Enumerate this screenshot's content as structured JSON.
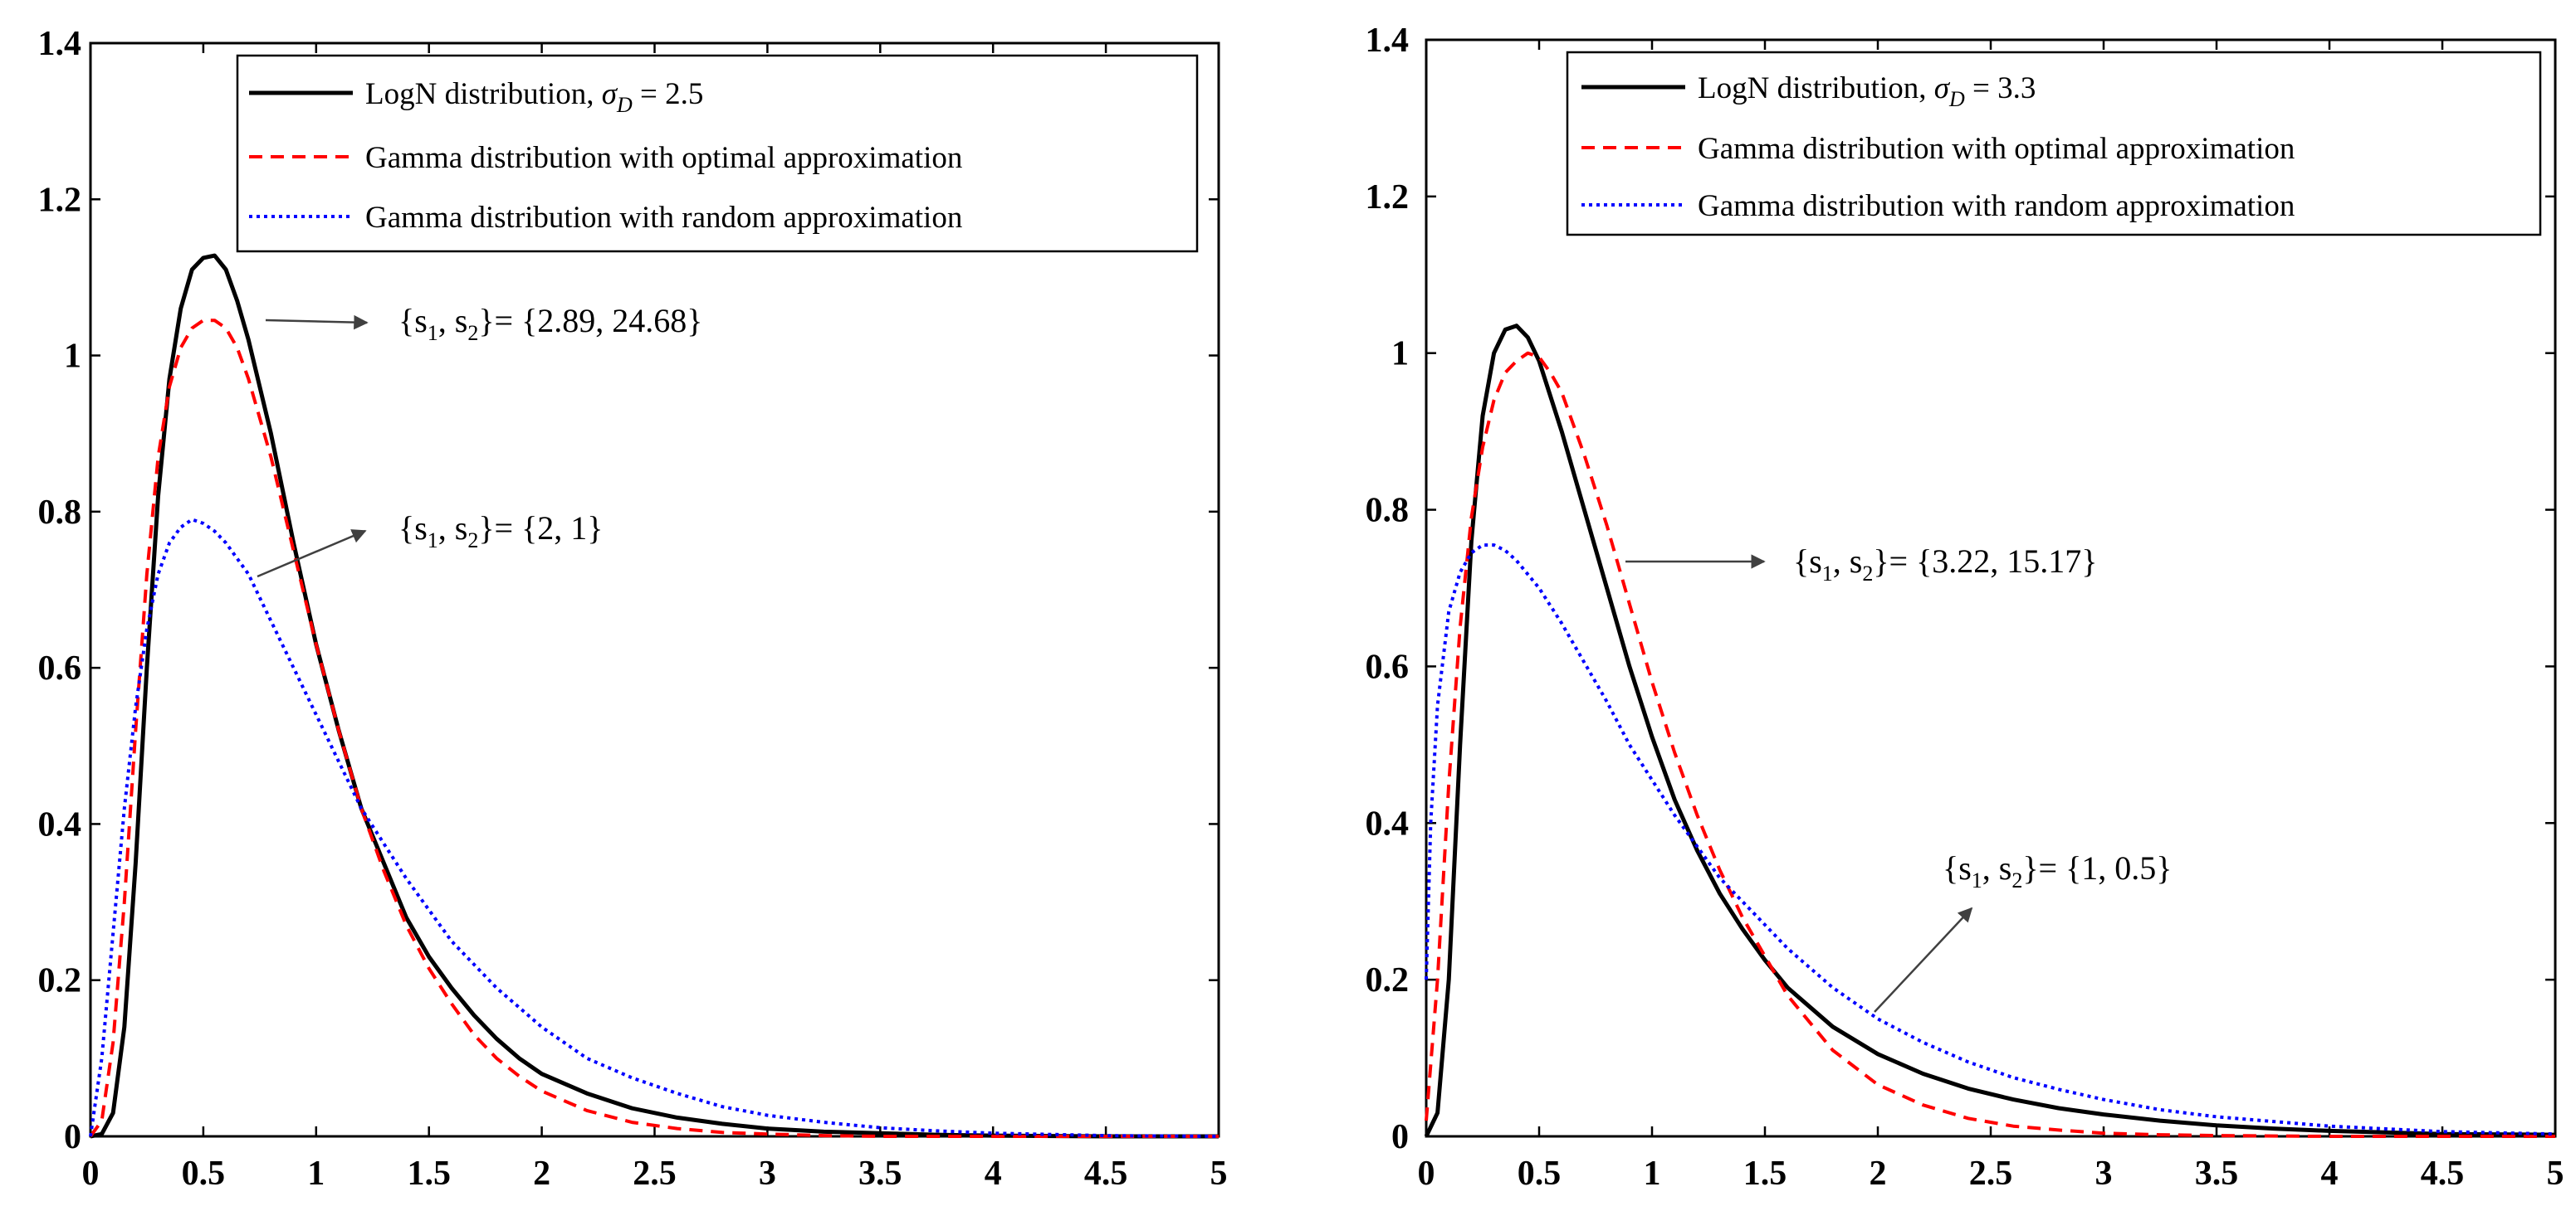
{
  "chart_data": [
    {
      "type": "line",
      "title": "",
      "xlabel": "",
      "ylabel": "",
      "xlim": [
        0,
        5
      ],
      "ylim": [
        0,
        1.4
      ],
      "xticks": [
        "0",
        "0.5",
        "1",
        "1.5",
        "2",
        "2.5",
        "3",
        "3.5",
        "4",
        "4.5",
        "5"
      ],
      "yticks": [
        "0",
        "0.2",
        "0.4",
        "0.6",
        "0.8",
        "1",
        "1.2",
        "1.4"
      ],
      "legend_position": "top-right",
      "series": [
        {
          "name": "LogN distribution, σD = 2.5",
          "style": "solid",
          "color": "#000000",
          "x": [
            0,
            0.05,
            0.1,
            0.15,
            0.2,
            0.25,
            0.3,
            0.35,
            0.4,
            0.45,
            0.5,
            0.55,
            0.6,
            0.65,
            0.7,
            0.8,
            0.9,
            1.0,
            1.1,
            1.2,
            1.3,
            1.4,
            1.5,
            1.6,
            1.7,
            1.8,
            1.9,
            2.0,
            2.2,
            2.4,
            2.6,
            2.8,
            3.0,
            3.25,
            3.5,
            3.75,
            4.0,
            4.5,
            5.0
          ],
          "values": [
            0,
            0.003,
            0.03,
            0.14,
            0.35,
            0.6,
            0.82,
            0.97,
            1.06,
            1.11,
            1.125,
            1.128,
            1.11,
            1.07,
            1.02,
            0.9,
            0.76,
            0.63,
            0.52,
            0.42,
            0.35,
            0.28,
            0.23,
            0.19,
            0.155,
            0.125,
            0.1,
            0.08,
            0.055,
            0.036,
            0.024,
            0.016,
            0.01,
            0.006,
            0.004,
            0.002,
            0.001,
            0,
            0
          ]
        },
        {
          "name": "Gamma distribution with optimal approximation",
          "style": "dashed",
          "color": "#ff0000",
          "x": [
            0,
            0.05,
            0.1,
            0.15,
            0.2,
            0.25,
            0.3,
            0.35,
            0.4,
            0.45,
            0.5,
            0.55,
            0.6,
            0.65,
            0.7,
            0.8,
            0.9,
            1.0,
            1.1,
            1.2,
            1.3,
            1.4,
            1.5,
            1.6,
            1.7,
            1.8,
            1.9,
            2.0,
            2.2,
            2.4,
            2.6,
            2.8,
            3.0,
            3.25,
            3.5,
            4.0,
            4.5,
            5.0
          ],
          "values": [
            0,
            0.02,
            0.12,
            0.3,
            0.52,
            0.72,
            0.87,
            0.96,
            1.01,
            1.035,
            1.045,
            1.045,
            1.035,
            1.01,
            0.97,
            0.87,
            0.75,
            0.63,
            0.52,
            0.42,
            0.34,
            0.27,
            0.215,
            0.17,
            0.13,
            0.1,
            0.077,
            0.058,
            0.033,
            0.018,
            0.01,
            0.005,
            0.003,
            0.001,
            0,
            0,
            0,
            0
          ]
        },
        {
          "name": "Gamma distribution with random approximation",
          "style": "dotted",
          "color": "#0000ff",
          "x": [
            0,
            0.05,
            0.1,
            0.15,
            0.2,
            0.25,
            0.3,
            0.35,
            0.4,
            0.45,
            0.5,
            0.55,
            0.6,
            0.7,
            0.8,
            0.9,
            1.0,
            1.1,
            1.2,
            1.3,
            1.4,
            1.5,
            1.6,
            1.7,
            1.8,
            2.0,
            2.2,
            2.4,
            2.6,
            2.8,
            3.0,
            3.25,
            3.5,
            3.75,
            4.0,
            4.5,
            5.0
          ],
          "values": [
            0,
            0.1,
            0.26,
            0.42,
            0.55,
            0.65,
            0.72,
            0.76,
            0.78,
            0.79,
            0.785,
            0.775,
            0.76,
            0.72,
            0.66,
            0.6,
            0.54,
            0.48,
            0.42,
            0.375,
            0.33,
            0.29,
            0.25,
            0.22,
            0.19,
            0.14,
            0.1,
            0.075,
            0.055,
            0.038,
            0.027,
            0.018,
            0.011,
            0.007,
            0.004,
            0.001,
            0
          ]
        }
      ],
      "annotations": [
        {
          "label": "{s1, s2}= {2.89, 24.68}",
          "s_values": "{2.89, 24.68}",
          "points_to": "Gamma distribution with optimal approximation"
        },
        {
          "label": "{s1, s2}= {2, 1}",
          "s_values": "{2, 1}",
          "points_to": "Gamma distribution with random approximation"
        }
      ]
    },
    {
      "type": "line",
      "title": "",
      "xlabel": "",
      "ylabel": "",
      "xlim": [
        0,
        5
      ],
      "ylim": [
        0,
        1.4
      ],
      "xticks": [
        "0",
        "0.5",
        "1",
        "1.5",
        "2",
        "2.5",
        "3",
        "3.5",
        "4",
        "4.5",
        "5"
      ],
      "yticks": [
        "0",
        "0.2",
        "0.4",
        "0.6",
        "0.8",
        "1",
        "1.2",
        "1.4"
      ],
      "legend_position": "top-right",
      "series": [
        {
          "name": "LogN distribution, σD = 3.3",
          "style": "solid",
          "color": "#000000",
          "x": [
            0,
            0.05,
            0.1,
            0.15,
            0.2,
            0.25,
            0.3,
            0.35,
            0.4,
            0.45,
            0.5,
            0.6,
            0.7,
            0.8,
            0.9,
            1.0,
            1.1,
            1.2,
            1.3,
            1.4,
            1.5,
            1.6,
            1.8,
            2.0,
            2.2,
            2.4,
            2.6,
            2.8,
            3.0,
            3.25,
            3.5,
            3.75,
            4.0,
            4.5,
            5.0
          ],
          "values": [
            0,
            0.03,
            0.2,
            0.5,
            0.76,
            0.92,
            1.0,
            1.03,
            1.035,
            1.02,
            0.99,
            0.9,
            0.8,
            0.7,
            0.6,
            0.51,
            0.43,
            0.365,
            0.31,
            0.265,
            0.225,
            0.19,
            0.14,
            0.105,
            0.08,
            0.061,
            0.047,
            0.036,
            0.028,
            0.02,
            0.014,
            0.01,
            0.007,
            0.003,
            0.002
          ]
        },
        {
          "name": "Gamma distribution with optimal approximation",
          "style": "dashed",
          "color": "#ff0000",
          "x": [
            0,
            0.05,
            0.1,
            0.15,
            0.2,
            0.25,
            0.3,
            0.35,
            0.4,
            0.45,
            0.5,
            0.55,
            0.6,
            0.7,
            0.8,
            0.9,
            1.0,
            1.1,
            1.2,
            1.3,
            1.4,
            1.5,
            1.6,
            1.8,
            2.0,
            2.2,
            2.4,
            2.6,
            2.8,
            3.0,
            3.25,
            3.5,
            4.0,
            4.5,
            5.0
          ],
          "values": [
            0.02,
            0.2,
            0.45,
            0.65,
            0.79,
            0.88,
            0.94,
            0.975,
            0.99,
            1.0,
            0.995,
            0.975,
            0.95,
            0.87,
            0.78,
            0.68,
            0.58,
            0.49,
            0.41,
            0.34,
            0.28,
            0.23,
            0.18,
            0.11,
            0.066,
            0.04,
            0.023,
            0.013,
            0.008,
            0.004,
            0.002,
            0.001,
            0,
            0,
            0
          ]
        },
        {
          "name": "Gamma distribution with random approximation",
          "style": "dotted",
          "color": "#0000ff",
          "x": [
            0,
            0.02,
            0.05,
            0.1,
            0.15,
            0.2,
            0.25,
            0.3,
            0.35,
            0.4,
            0.5,
            0.6,
            0.7,
            0.8,
            0.9,
            1.0,
            1.1,
            1.2,
            1.3,
            1.4,
            1.5,
            1.6,
            1.8,
            2.0,
            2.2,
            2.4,
            2.6,
            2.8,
            3.0,
            3.25,
            3.5,
            4.0,
            4.5,
            5.0
          ],
          "values": [
            0.2,
            0.4,
            0.55,
            0.67,
            0.72,
            0.745,
            0.755,
            0.755,
            0.748,
            0.735,
            0.7,
            0.655,
            0.605,
            0.555,
            0.5,
            0.455,
            0.41,
            0.37,
            0.33,
            0.3,
            0.27,
            0.24,
            0.19,
            0.15,
            0.12,
            0.095,
            0.075,
            0.06,
            0.047,
            0.034,
            0.025,
            0.013,
            0.006,
            0.003
          ]
        }
      ],
      "annotations": [
        {
          "label": "{s1, s2}= {3.22, 15.17}",
          "s_values": "{3.22, 15.17}",
          "points_to": "Gamma distribution with optimal approximation"
        },
        {
          "label": "{s1, s2}= {1, 0.5}",
          "s_values": "{1, 0.5}",
          "points_to": "Gamma distribution with random approximation"
        }
      ]
    }
  ],
  "legends": [
    {
      "items": [
        {
          "lead": "LogN distribution, ",
          "symbol": "σ",
          "subscript": "D",
          "value": " = 2.5"
        },
        {
          "text": "Gamma distribution with optimal approximation"
        },
        {
          "text": "Gamma distribution with random approximation"
        }
      ]
    },
    {
      "items": [
        {
          "lead": "LogN distribution, ",
          "symbol": "σ",
          "subscript": "D",
          "value": " = 3.3"
        },
        {
          "text": "Gamma distribution with optimal approximation"
        },
        {
          "text": "Gamma distribution with random approximation"
        }
      ]
    }
  ],
  "annotation_parts": {
    "open": "{s",
    "sub1": "1",
    "sep": ", s",
    "sub2": "2",
    "close": "}= "
  }
}
